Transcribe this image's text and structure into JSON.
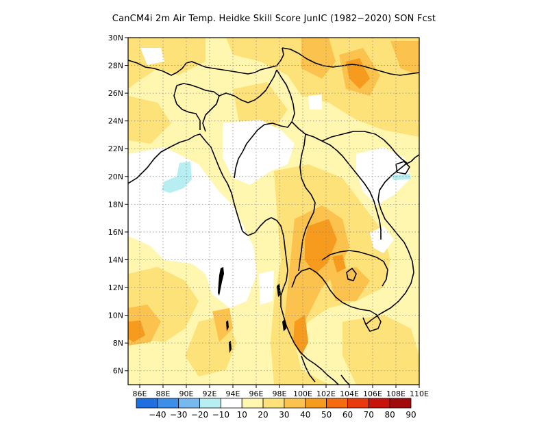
{
  "title": "CanCM4i  2m Air Temp. Heidke Skill Score JunIC (1982−2020) SON Fcst",
  "map": {
    "lat_labels": [
      "30N",
      "28N",
      "26N",
      "24N",
      "22N",
      "20N",
      "18N",
      "16N",
      "14N",
      "12N",
      "10N",
      "8N",
      "6N"
    ],
    "lon_labels": [
      "86E",
      "88E",
      "90E",
      "92E",
      "94E",
      "96E",
      "98E",
      "100E",
      "102E",
      "104E",
      "106E",
      "108E",
      "110E"
    ],
    "lat_range": [
      5,
      30
    ],
    "lon_range": [
      85,
      110
    ],
    "grid": "dotted"
  },
  "colorbar": {
    "labels": [
      "−40",
      "−30",
      "−20",
      "−10",
      "10",
      "20",
      "30",
      "40",
      "50",
      "60",
      "70",
      "80",
      "90"
    ],
    "colors": [
      "#1f6fe0",
      "#3c8ee8",
      "#77b8ef",
      "#b7eef2",
      "#ffffff",
      "#fff7b0",
      "#fde27a",
      "#fbc34e",
      "#f79b1f",
      "#f56c10",
      "#e83a0c",
      "#c8130b",
      "#a00a0a"
    ]
  }
}
